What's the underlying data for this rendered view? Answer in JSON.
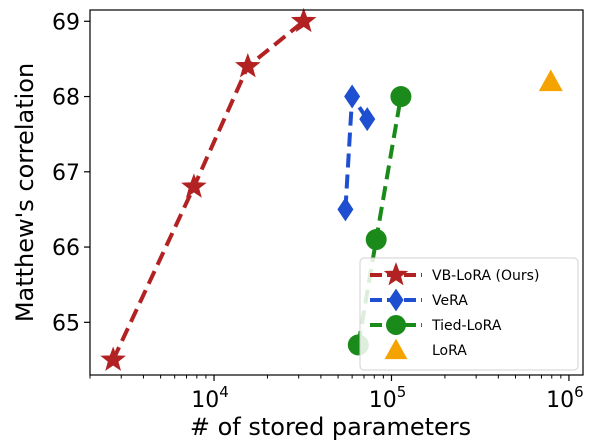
{
  "chart_data": {
    "type": "line",
    "xscale": "log",
    "xlim": [
      2000,
      1200000
    ],
    "ylim": [
      64.3,
      69.15
    ],
    "xlabel": "# of stored parameters",
    "ylabel": "Matthew's correlation",
    "xticks": [
      {
        "value": 10000,
        "base": "10",
        "exp": "4"
      },
      {
        "value": 100000,
        "base": "10",
        "exp": "5"
      },
      {
        "value": 1000000,
        "base": "10",
        "exp": "6"
      }
    ],
    "yticks": [
      65,
      66,
      67,
      68,
      69
    ],
    "grid": false,
    "legend_position": "lower-right",
    "series": [
      {
        "name": "VB-LoRA (Ours)",
        "color": "#b22222",
        "marker": "star",
        "linestyle": "dashed",
        "x": [
          2700,
          7700,
          15500,
          32000
        ],
        "y": [
          64.5,
          66.8,
          68.4,
          69.0
        ]
      },
      {
        "name": "VeRA",
        "color": "#1f4fd1",
        "marker": "diamond",
        "linestyle": "dashed",
        "x": [
          55000,
          60000,
          73000
        ],
        "y": [
          66.5,
          68.0,
          67.7
        ]
      },
      {
        "name": "Tied-LoRA",
        "color": "#1a8a1a",
        "marker": "circle",
        "linestyle": "dashed",
        "x": [
          65000,
          82000,
          113000
        ],
        "y": [
          64.7,
          66.1,
          68.0
        ]
      },
      {
        "name": "LoRA",
        "color": "#f5a300",
        "marker": "triangle",
        "linestyle": "none",
        "x": [
          790000
        ],
        "y": [
          68.2
        ]
      }
    ]
  }
}
